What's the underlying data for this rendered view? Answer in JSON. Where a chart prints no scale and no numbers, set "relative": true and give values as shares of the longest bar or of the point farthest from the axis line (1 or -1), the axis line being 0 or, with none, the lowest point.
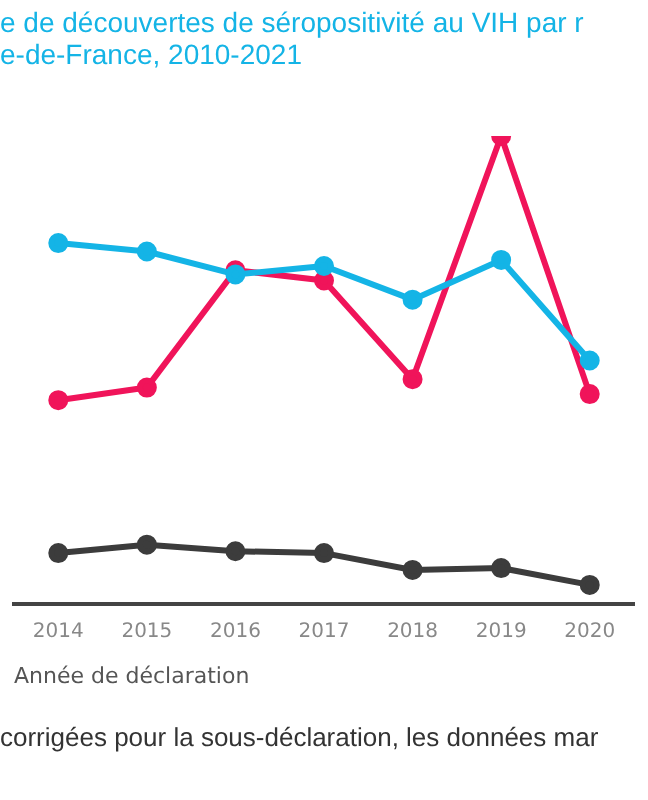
{
  "chart_data": {
    "type": "line",
    "title": "e de découvertes de séropositivité au VIH par r\ne-de-France, 2010-2021",
    "xlabel": "Année de déclaration",
    "categories": [
      "2014",
      "2015",
      "2016",
      "2017",
      "2018",
      "2019",
      "2020"
    ],
    "relative": true,
    "marker": "circle",
    "series": [
      {
        "color": "#f0145a",
        "values": [
          0.435,
          0.462,
          0.713,
          0.691,
          0.48,
          1,
          0.448
        ]
      },
      {
        "color": "#14b4e6",
        "values": [
          0.771,
          0.753,
          0.704,
          0.722,
          0.65,
          0.735,
          0.52
        ]
      },
      {
        "color": "#3c3c3c",
        "values": [
          0.108,
          0.126,
          0.112,
          0.108,
          0.072,
          0.076,
          0.04
        ]
      }
    ],
    "annotations": [
      "corrigées pour la sous-déclaration, les données mar"
    ]
  }
}
